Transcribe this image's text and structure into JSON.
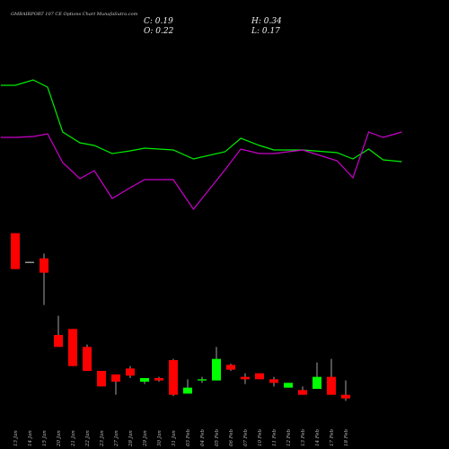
{
  "header": {
    "title": "GMRAIRPORT 107 CE Options  Chart MunafaSutra.com",
    "close": "C: 0.19",
    "high": "H: 0.34",
    "open": "O: 0.22",
    "low": "L: 0.17"
  },
  "chart_data": {
    "type": "candlestick",
    "categories": [
      "13 Jan",
      "14 Jan",
      "15 Jan",
      "20 Jan",
      "21 Jan",
      "22 Jan",
      "23 Jan",
      "27 Jan",
      "28 Jan",
      "29 Jan",
      "30 Jan",
      "31 Jan",
      "03 Feb",
      "04 Feb",
      "05 Feb",
      "06 Feb",
      "07 Feb",
      "10 Feb",
      "11 Feb",
      "12 Feb",
      "13 Feb",
      "14 Feb",
      "17 Feb",
      "18 Feb"
    ],
    "open": [
      1.57,
      1.33,
      1.36,
      0.72,
      0.77,
      0.62,
      0.42,
      0.39,
      0.44,
      0.33,
      0.36,
      0.51,
      0.23,
      0.34,
      0.34,
      0.47,
      0.37,
      0.4,
      0.35,
      0.28,
      0.26,
      0.27,
      0.37,
      0.22
    ],
    "high": [
      1.57,
      1.33,
      1.4,
      0.88,
      0.77,
      0.64,
      0.42,
      0.39,
      0.46,
      0.36,
      0.37,
      0.52,
      0.35,
      0.37,
      0.62,
      0.48,
      0.4,
      0.4,
      0.37,
      0.32,
      0.29,
      0.49,
      0.52,
      0.34
    ],
    "low": [
      1.27,
      1.33,
      0.97,
      0.62,
      0.46,
      0.42,
      0.29,
      0.22,
      0.36,
      0.31,
      0.33,
      0.21,
      0.23,
      0.32,
      0.34,
      0.42,
      0.31,
      0.35,
      0.29,
      0.28,
      0.22,
      0.27,
      0.22,
      0.17
    ],
    "close": [
      1.27,
      1.33,
      1.24,
      0.62,
      0.46,
      0.42,
      0.29,
      0.33,
      0.38,
      0.36,
      0.34,
      0.22,
      0.28,
      0.35,
      0.52,
      0.43,
      0.35,
      0.35,
      0.32,
      0.32,
      0.22,
      0.37,
      0.22,
      0.19
    ],
    "up_color": "#00ff00",
    "down_color": "#ff0000",
    "ylim": [
      0,
      2.25
    ],
    "lines": {
      "x": [
        -1,
        0,
        1.25,
        2.25,
        3.3,
        4.5,
        5.5,
        6.75,
        8,
        9,
        11,
        12.4,
        14.6,
        15.7,
        17,
        18,
        20,
        22.4,
        23.5,
        24.6,
        25.6,
        26.9
      ],
      "y2lim": [
        0,
        160
      ],
      "series": [
        {
          "color": "#00ee00",
          "values": [
            145,
            145,
            151,
            143,
            93,
            81,
            78,
            69,
            72,
            75,
            73,
            63,
            71,
            86,
            78,
            73,
            73,
            70,
            63,
            74,
            62,
            60
          ]
        },
        {
          "color": "#cc00cc",
          "values": [
            87,
            87,
            88,
            91,
            59,
            41,
            50,
            19,
            31,
            40,
            40,
            7,
            51,
            74,
            69,
            69,
            73,
            61,
            42,
            93,
            87,
            93
          ]
        }
      ]
    }
  }
}
